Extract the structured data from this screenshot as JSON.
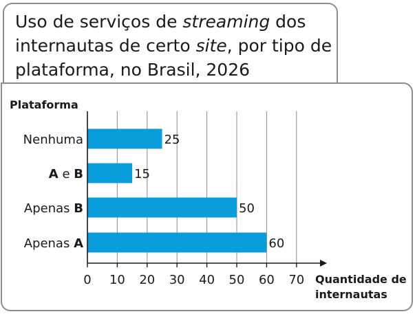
{
  "title": {
    "part1": "Uso de serviços de ",
    "part2_italic": "streaming",
    "part3": " dos internautas de certo ",
    "part4_italic": "site",
    "part5": ", por tipo de plataforma, no Brasil, 2026"
  },
  "chart_data": {
    "type": "bar",
    "orientation": "horizontal",
    "title": "Uso de serviços de streaming dos internautas de certo site, por tipo de plataforma, no Brasil, 2026",
    "ylabel": "Plataforma",
    "xlabel": "Quantidade de internautas",
    "xlabel_lines": [
      "Quantidade de",
      "internautas"
    ],
    "categories": [
      "Nenhuma",
      "A e B",
      "Apenas B",
      "Apenas A"
    ],
    "category_parts": [
      [
        {
          "text": "Nenhuma",
          "bold": false
        }
      ],
      [
        {
          "text": "A",
          "bold": true
        },
        {
          "text": " e ",
          "bold": false
        },
        {
          "text": "B",
          "bold": true
        }
      ],
      [
        {
          "text": "Apenas ",
          "bold": false
        },
        {
          "text": "B",
          "bold": true
        }
      ],
      [
        {
          "text": "Apenas ",
          "bold": false
        },
        {
          "text": "A",
          "bold": true
        }
      ]
    ],
    "values": [
      25,
      15,
      50,
      60
    ],
    "data_labels": [
      "25",
      "15",
      "50",
      "60"
    ],
    "xticks": [
      0,
      10,
      20,
      30,
      40,
      50,
      60,
      70
    ],
    "xtick_labels": [
      "0",
      "10",
      "20",
      "30",
      "40",
      "50",
      "60",
      "70"
    ],
    "xlim": [
      0,
      70
    ],
    "grid": "vertical",
    "bar_color": "#0a9ddb",
    "grid_color": "#8c8c8c",
    "axis_color": "#1a1a1a"
  }
}
